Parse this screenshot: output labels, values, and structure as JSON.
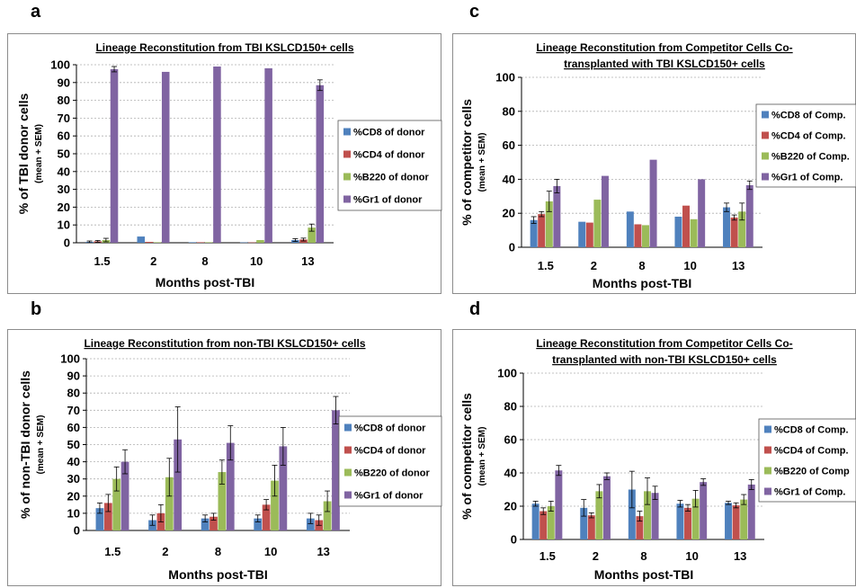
{
  "panel_letters": [
    "a",
    "b",
    "c",
    "d"
  ],
  "colors": {
    "CD8": "#4f81bd",
    "CD4": "#c0504d",
    "B220": "#9bbb59",
    "Gr1": "#8064a2"
  },
  "chart_data": [
    {
      "type": "bar",
      "title": "Lineage Reconstitution from TBI KSLCD150+ cells",
      "ylabel_main": "% of TBI donor cells",
      "ylabel_sub": "(mean + SEM)",
      "xlabel": "Months post-TBI",
      "categories": [
        "1.5",
        "2",
        "8",
        "10",
        "13"
      ],
      "ylim": [
        0,
        100
      ],
      "ytick_step": 10,
      "gridlines": true,
      "legend_position": "right",
      "series": [
        {
          "name": "%CD8 of donor",
          "color": "#4f81bd",
          "values": [
            0.5,
            3.5,
            0.3,
            0.2,
            1.5
          ],
          "errors": [
            0.5,
            0,
            0,
            0,
            0.8
          ]
        },
        {
          "name": "%CD4 of donor",
          "color": "#c0504d",
          "values": [
            0.8,
            0.5,
            0.3,
            0.2,
            1.8
          ],
          "errors": [
            0.5,
            0,
            0,
            0,
            0.8
          ]
        },
        {
          "name": "%B220 of donor",
          "color": "#9bbb59",
          "values": [
            1.5,
            0.3,
            0.3,
            1.5,
            8.5
          ],
          "errors": [
            1.0,
            0,
            0,
            0,
            2.0
          ]
        },
        {
          "name": "%Gr1 of donor",
          "color": "#8064a2",
          "values": [
            97.5,
            96,
            99,
            98,
            88.5
          ],
          "errors": [
            1.5,
            0,
            0,
            0,
            3.0
          ]
        }
      ]
    },
    {
      "type": "bar",
      "title": "Lineage Reconstitution from non-TBI KSLCD150+ cells",
      "ylabel_main": "% of non-TBI donor cells",
      "ylabel_sub": "(mean + SEM)",
      "xlabel": "Months post-TBI",
      "categories": [
        "1.5",
        "2",
        "8",
        "10",
        "13"
      ],
      "ylim": [
        0,
        100
      ],
      "ytick_step": 10,
      "gridlines": true,
      "legend_position": "right",
      "series": [
        {
          "name": "%CD8 of donor",
          "color": "#4f81bd",
          "values": [
            13,
            6,
            7,
            7,
            7
          ],
          "errors": [
            3,
            3,
            2,
            2,
            3
          ]
        },
        {
          "name": "%CD4 of donor",
          "color": "#c0504d",
          "values": [
            16,
            10,
            8,
            15,
            6
          ],
          "errors": [
            5,
            5,
            2,
            3,
            3
          ]
        },
        {
          "name": "%B220 of donor",
          "color": "#9bbb59",
          "values": [
            30,
            31,
            34,
            29,
            17
          ],
          "errors": [
            7,
            11,
            7,
            9,
            6
          ]
        },
        {
          "name": "%Gr1 of donor",
          "color": "#8064a2",
          "values": [
            40,
            53,
            51,
            49,
            70
          ],
          "errors": [
            7,
            19,
            10,
            11,
            8
          ]
        }
      ]
    },
    {
      "type": "bar",
      "title": "Lineage Reconstitution from Competitor Cells Co-transplanted with TBI KSLCD150+ cells",
      "title_lines": [
        "Lineage Reconstitution from Competitor Cells Co-",
        "transplanted with TBI KSLCD150+ cells"
      ],
      "ylabel_main": "% of competitor cells",
      "ylabel_sub": "(mean + SEM)",
      "xlabel": "Months post-TBI",
      "categories": [
        "1.5",
        "2",
        "8",
        "10",
        "13"
      ],
      "ylim": [
        0,
        100
      ],
      "ytick_step": 20,
      "gridlines": true,
      "legend_position": "right",
      "series": [
        {
          "name": "%CD8 of Comp.",
          "color": "#4f81bd",
          "values": [
            16,
            15,
            21,
            18,
            23.5
          ],
          "errors": [
            2,
            0,
            0,
            0,
            2.5
          ]
        },
        {
          "name": "%CD4 of Comp.",
          "color": "#c0504d",
          "values": [
            19.5,
            14.5,
            13.5,
            24.5,
            17.5
          ],
          "errors": [
            1.5,
            0,
            0,
            0,
            1.5
          ]
        },
        {
          "name": "%B220 of Comp.",
          "color": "#9bbb59",
          "values": [
            27,
            28,
            13,
            16.5,
            21
          ],
          "errors": [
            6,
            0,
            0,
            0,
            5
          ]
        },
        {
          "name": "%Gr1 of Comp.",
          "color": "#8064a2",
          "values": [
            36,
            42,
            51.5,
            40,
            36.5
          ],
          "errors": [
            4,
            0,
            0,
            0,
            2.5
          ]
        }
      ]
    },
    {
      "type": "bar",
      "title": "Lineage Reconstitution from Competitor Cells Co-transplanted with non-TBI KSLCD150+ cells",
      "title_lines": [
        "Lineage Reconstitution from Competitor Cells Co-",
        "transplanted with non-TBI KSLCD150+ cells"
      ],
      "ylabel_main": "% of competitor cells",
      "ylabel_sub": "(mean + SEM)",
      "xlabel": "Months post-TBI",
      "categories": [
        "1.5",
        "2",
        "8",
        "10",
        "13"
      ],
      "ylim": [
        0,
        100
      ],
      "ytick_step": 20,
      "gridlines": true,
      "legend_position": "right",
      "series": [
        {
          "name": "%CD8 of Comp.",
          "color": "#4f81bd",
          "values": [
            21.5,
            19,
            30,
            21.5,
            22
          ],
          "errors": [
            1.5,
            5,
            11,
            2,
            1
          ]
        },
        {
          "name": "%CD4 of Comp.",
          "color": "#c0504d",
          "values": [
            17,
            14.5,
            14,
            19,
            20.5
          ],
          "errors": [
            2,
            1.5,
            3,
            2,
            1.5
          ]
        },
        {
          "name": "%B220 of Comp",
          "color": "#9bbb59",
          "values": [
            20,
            29,
            29,
            24.5,
            24
          ],
          "errors": [
            3,
            4,
            8,
            5,
            3
          ]
        },
        {
          "name": "%Gr1 of Comp.",
          "color": "#8064a2",
          "values": [
            41.5,
            38,
            28,
            34.5,
            33
          ],
          "errors": [
            3,
            2,
            4,
            2,
            3
          ]
        }
      ]
    }
  ]
}
